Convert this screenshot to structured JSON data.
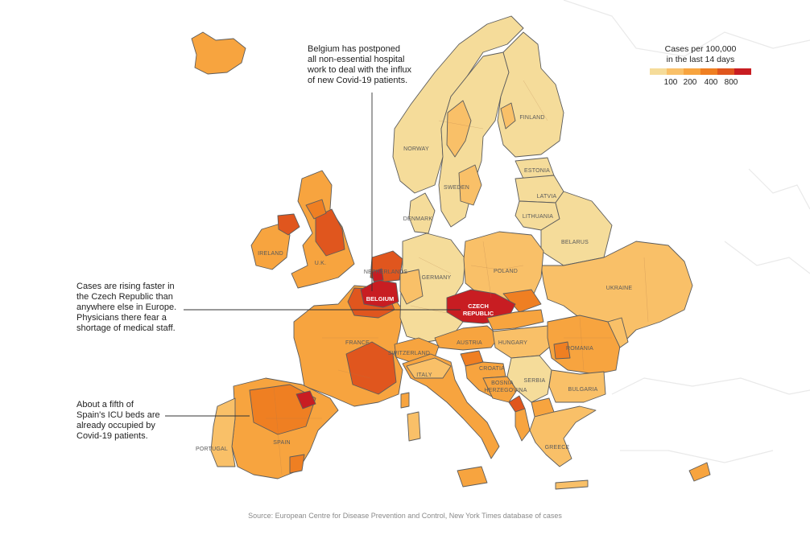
{
  "legend": {
    "title_lines": [
      "Cases per 100,000",
      "in the last 14 days"
    ],
    "colors": [
      "#f5dc9a",
      "#f9c068",
      "#f7a43f",
      "#ef7f22",
      "#e0561e",
      "#c81d22"
    ],
    "ticks": [
      "100",
      "200",
      "400",
      "800"
    ]
  },
  "annotations": [
    {
      "id": "belgium",
      "lines": [
        "Belgium has postponed",
        "all non-essential hospital",
        "work to deal with the influx",
        "of new Covid-19 patients."
      ]
    },
    {
      "id": "czech",
      "lines": [
        "Cases are rising faster in",
        "the Czech Republic than",
        "anywhere else in Europe.",
        "Physicians there fear a",
        "shortage of medical staff."
      ]
    },
    {
      "id": "spain",
      "lines": [
        "About a fifth of",
        "Spain's ICU beds are",
        "already occupied by",
        "Covid-19 patients."
      ]
    }
  ],
  "country_labels": {
    "finland": "FINLAND",
    "norway": "NORWAY",
    "sweden": "SWEDEN",
    "estonia": "ESTONIA",
    "latvia": "LATVIA",
    "lithuania": "LITHUANIA",
    "denmark": "DENMARK",
    "belarus": "BELARUS",
    "ireland": "IRELAND",
    "uk": "U.K.",
    "netherlands": "NETHERLANDS",
    "germany": "GERMANY",
    "poland": "POLAND",
    "ukraine": "UKRAINE",
    "belgium": "BELGIUM",
    "czech_line1": "CZECH",
    "czech_line2": "REPUBLIC",
    "france": "FRANCE",
    "austria": "AUSTRIA",
    "hungary": "HUNGARY",
    "romania": "ROMANIA",
    "switzerland": "SWITZERLAND",
    "croatia": "CROATIA",
    "italy": "ITALY",
    "bosnia_line1": "BOSNIA",
    "bosnia_line2": "HERZEGOVINA",
    "serbia": "SERBIA",
    "bulgaria": "BULGARIA",
    "portugal": "PORTUGAL",
    "spain": "SPAIN",
    "greece": "GREECE"
  },
  "source": "Source: European Centre for Disease Prevention and Control, New York Times database of cases"
}
